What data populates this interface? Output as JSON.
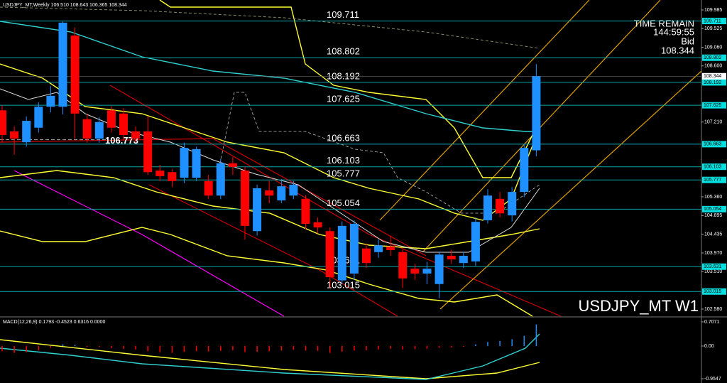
{
  "chart_data": {
    "type": "candlestick",
    "title": "USDJPY_MT,Weekly  106.510 108.643 106.365 108.344",
    "watermark": "USDJPY_MT W1",
    "info": {
      "time_label": "TIME REMAIN",
      "time": "144:59:55",
      "bid_label": "Bid",
      "bid": 108.344
    },
    "up_color": "#1e90ff",
    "down_color": "#ff0000",
    "level_color": "#0aa6a6",
    "ylim": [
      102.404,
      110.231
    ],
    "yticks": [
      109.985,
      109.525,
      {
        "value": 109.06,
        "label": "109.060"
      },
      {
        "value": 108.6,
        "label": "108.600"
      },
      {
        "value": 107.21,
        "label": "107.210"
      },
      {
        "value": 105.36,
        "label": "105.360"
      },
      104.895,
      104.435,
      {
        "value": 103.97,
        "label": "103.970"
      },
      {
        "value": 103.51,
        "label": "103.510"
      },
      {
        "value": 102.58,
        "label": "102.580"
      }
    ],
    "levels": [
      109.711,
      108.802,
      108.192,
      107.625,
      106.663,
      106.103,
      105.777,
      105.054,
      103.631,
      103.015
    ],
    "marker_line": 106.773,
    "open": [
      107.5,
      106.98,
      106.71,
      107.07,
      107.59,
      107.59,
      109.35,
      107.28,
      106.8,
      107.5,
      107.42,
      106.98,
      106.98,
      106.01,
      105.97,
      105.83,
      105.83,
      105.75,
      105.39,
      106.19,
      106.01,
      104.51,
      105.52,
      105.27,
      105.39,
      105.31,
      104.73,
      104.51,
      103.29,
      103.46,
      104.08,
      103.99,
      104.13,
      103.99,
      103.58,
      103.46,
      103.2,
      103.9,
      103.72,
      103.76,
      104.78,
      105.31,
      104.9,
      105.48,
      106.51
    ],
    "high": [
      107.62,
      107.1,
      107.35,
      107.7,
      108.1,
      109.7,
      109.55,
      107.4,
      107.33,
      107.6,
      107.55,
      107.1,
      107.35,
      106.15,
      106.05,
      106.7,
      106.6,
      105.9,
      106.3,
      106.35,
      106.1,
      105.66,
      105.75,
      105.8,
      105.75,
      105.4,
      104.85,
      104.6,
      104.75,
      104.78,
      104.2,
      104.3,
      104.4,
      104.05,
      103.7,
      103.75,
      104.0,
      104.05,
      104.0,
      104.85,
      105.55,
      105.48,
      105.6,
      106.66,
      108.643
    ],
    "low": [
      106.7,
      106.4,
      106.6,
      106.95,
      107.45,
      107.4,
      106.8,
      106.7,
      106.7,
      106.95,
      106.75,
      106.7,
      105.9,
      105.75,
      105.6,
      105.7,
      105.75,
      105.3,
      105.3,
      105.9,
      104.3,
      104.4,
      105.2,
      105.2,
      105.3,
      104.55,
      104.45,
      103.1,
      103.2,
      103.3,
      103.6,
      103.85,
      103.9,
      103.1,
      103.3,
      103.2,
      102.85,
      103.7,
      103.6,
      103.65,
      104.7,
      104.85,
      104.75,
      105.35,
      106.365
    ],
    "close": [
      106.89,
      106.8,
      107.24,
      107.59,
      107.86,
      109.67,
      107.42,
      106.8,
      107.21,
      107.07,
      106.89,
      106.8,
      105.97,
      105.87,
      105.75,
      106.57,
      106.54,
      105.39,
      106.19,
      106.1,
      104.64,
      105.57,
      105.39,
      105.62,
      105.66,
      104.69,
      104.6,
      103.37,
      104.64,
      104.69,
      103.72,
      104.16,
      104.04,
      103.34,
      103.46,
      103.58,
      103.93,
      103.81,
      103.9,
      104.74,
      105.39,
      104.95,
      105.48,
      106.57,
      108.344
    ],
    "macd": {
      "title": "MACD(12,26,9) 0.1793 -0.4523 0.6316 0.0000",
      "ylim": [
        -1.08,
        0.81
      ],
      "yticks": [
        0.7071,
        {
          "value": 0,
          "label": "0.00"
        },
        -0.9547
      ],
      "values": [
        -0.15,
        -0.2,
        -0.18,
        -0.12,
        -0.05,
        0.05,
        0.04,
        -0.02,
        -0.03,
        -0.06,
        -0.08,
        -0.1,
        -0.15,
        -0.18,
        -0.2,
        -0.17,
        -0.15,
        -0.16,
        -0.14,
        -0.12,
        -0.18,
        -0.17,
        -0.15,
        -0.13,
        -0.11,
        -0.13,
        -0.14,
        -0.2,
        -0.17,
        -0.13,
        -0.12,
        -0.1,
        -0.08,
        -0.1,
        -0.09,
        -0.08,
        -0.05,
        -0.04,
        -0.02,
        0.05,
        0.12,
        0.15,
        0.2,
        0.3,
        0.6316
      ]
    }
  }
}
